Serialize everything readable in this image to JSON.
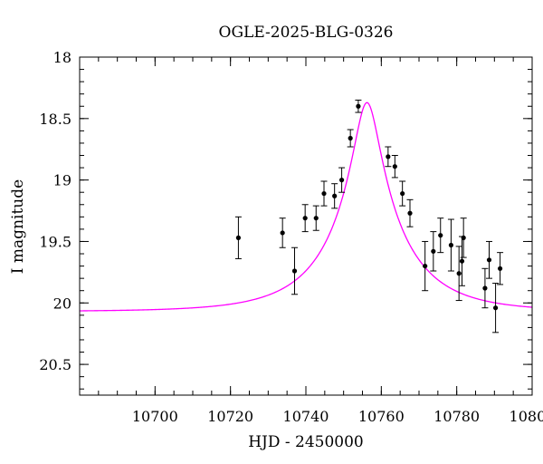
{
  "chart_data": {
    "type": "scatter",
    "title": "OGLE-2025-BLG-0326",
    "xlabel": "HJD - 2450000",
    "ylabel": "I magnitude",
    "xlim": [
      10680,
      10800
    ],
    "ylim": [
      20.75,
      18
    ],
    "y_inverted": true,
    "grid": false,
    "x_ticks": [
      10700,
      10720,
      10740,
      10760,
      10780,
      10800
    ],
    "x_tick_labels": [
      "10700",
      "10720",
      "10740",
      "10760",
      "10780",
      "10800"
    ],
    "y_ticks": [
      18,
      18.5,
      19,
      19.5,
      20,
      20.5
    ],
    "y_tick_labels": [
      "18",
      "18.5",
      "19",
      "19.5",
      "20",
      "20.5"
    ],
    "x_minor_step": 5,
    "y_minor_step": 0.1,
    "series": [
      {
        "type": "errorbar",
        "color": "#000000",
        "points": [
          {
            "x": 10722.1,
            "y": 19.47,
            "err": 0.17
          },
          {
            "x": 10733.8,
            "y": 19.43,
            "err": 0.12
          },
          {
            "x": 10737.0,
            "y": 19.74,
            "err": 0.19
          },
          {
            "x": 10739.8,
            "y": 19.31,
            "err": 0.11
          },
          {
            "x": 10742.7,
            "y": 19.31,
            "err": 0.1
          },
          {
            "x": 10744.8,
            "y": 19.11,
            "err": 0.1
          },
          {
            "x": 10747.6,
            "y": 19.13,
            "err": 0.1
          },
          {
            "x": 10749.5,
            "y": 19.0,
            "err": 0.1
          },
          {
            "x": 10751.8,
            "y": 18.66,
            "err": 0.07
          },
          {
            "x": 10753.9,
            "y": 18.4,
            "err": 0.05
          },
          {
            "x": 10761.8,
            "y": 18.81,
            "err": 0.08
          },
          {
            "x": 10763.6,
            "y": 18.89,
            "err": 0.09
          },
          {
            "x": 10765.6,
            "y": 19.11,
            "err": 0.1
          },
          {
            "x": 10767.6,
            "y": 19.27,
            "err": 0.11
          },
          {
            "x": 10771.6,
            "y": 19.7,
            "err": 0.2
          },
          {
            "x": 10773.8,
            "y": 19.58,
            "err": 0.16
          },
          {
            "x": 10775.7,
            "y": 19.45,
            "err": 0.14
          },
          {
            "x": 10778.5,
            "y": 19.53,
            "err": 0.21
          },
          {
            "x": 10780.6,
            "y": 19.76,
            "err": 0.22
          },
          {
            "x": 10781.4,
            "y": 19.66,
            "err": 0.2
          },
          {
            "x": 10781.8,
            "y": 19.47,
            "err": 0.16
          },
          {
            "x": 10787.5,
            "y": 19.88,
            "err": 0.16
          },
          {
            "x": 10788.6,
            "y": 19.65,
            "err": 0.15
          },
          {
            "x": 10790.3,
            "y": 20.04,
            "err": 0.2
          },
          {
            "x": 10791.5,
            "y": 19.72,
            "err": 0.13
          }
        ]
      },
      {
        "type": "line",
        "color": "#ff00ff",
        "model": {
          "t0": 10756.2,
          "u0": 0.16,
          "tE": 20.0,
          "I_base": 20.07,
          "I_peak": 18.37
        }
      }
    ]
  }
}
